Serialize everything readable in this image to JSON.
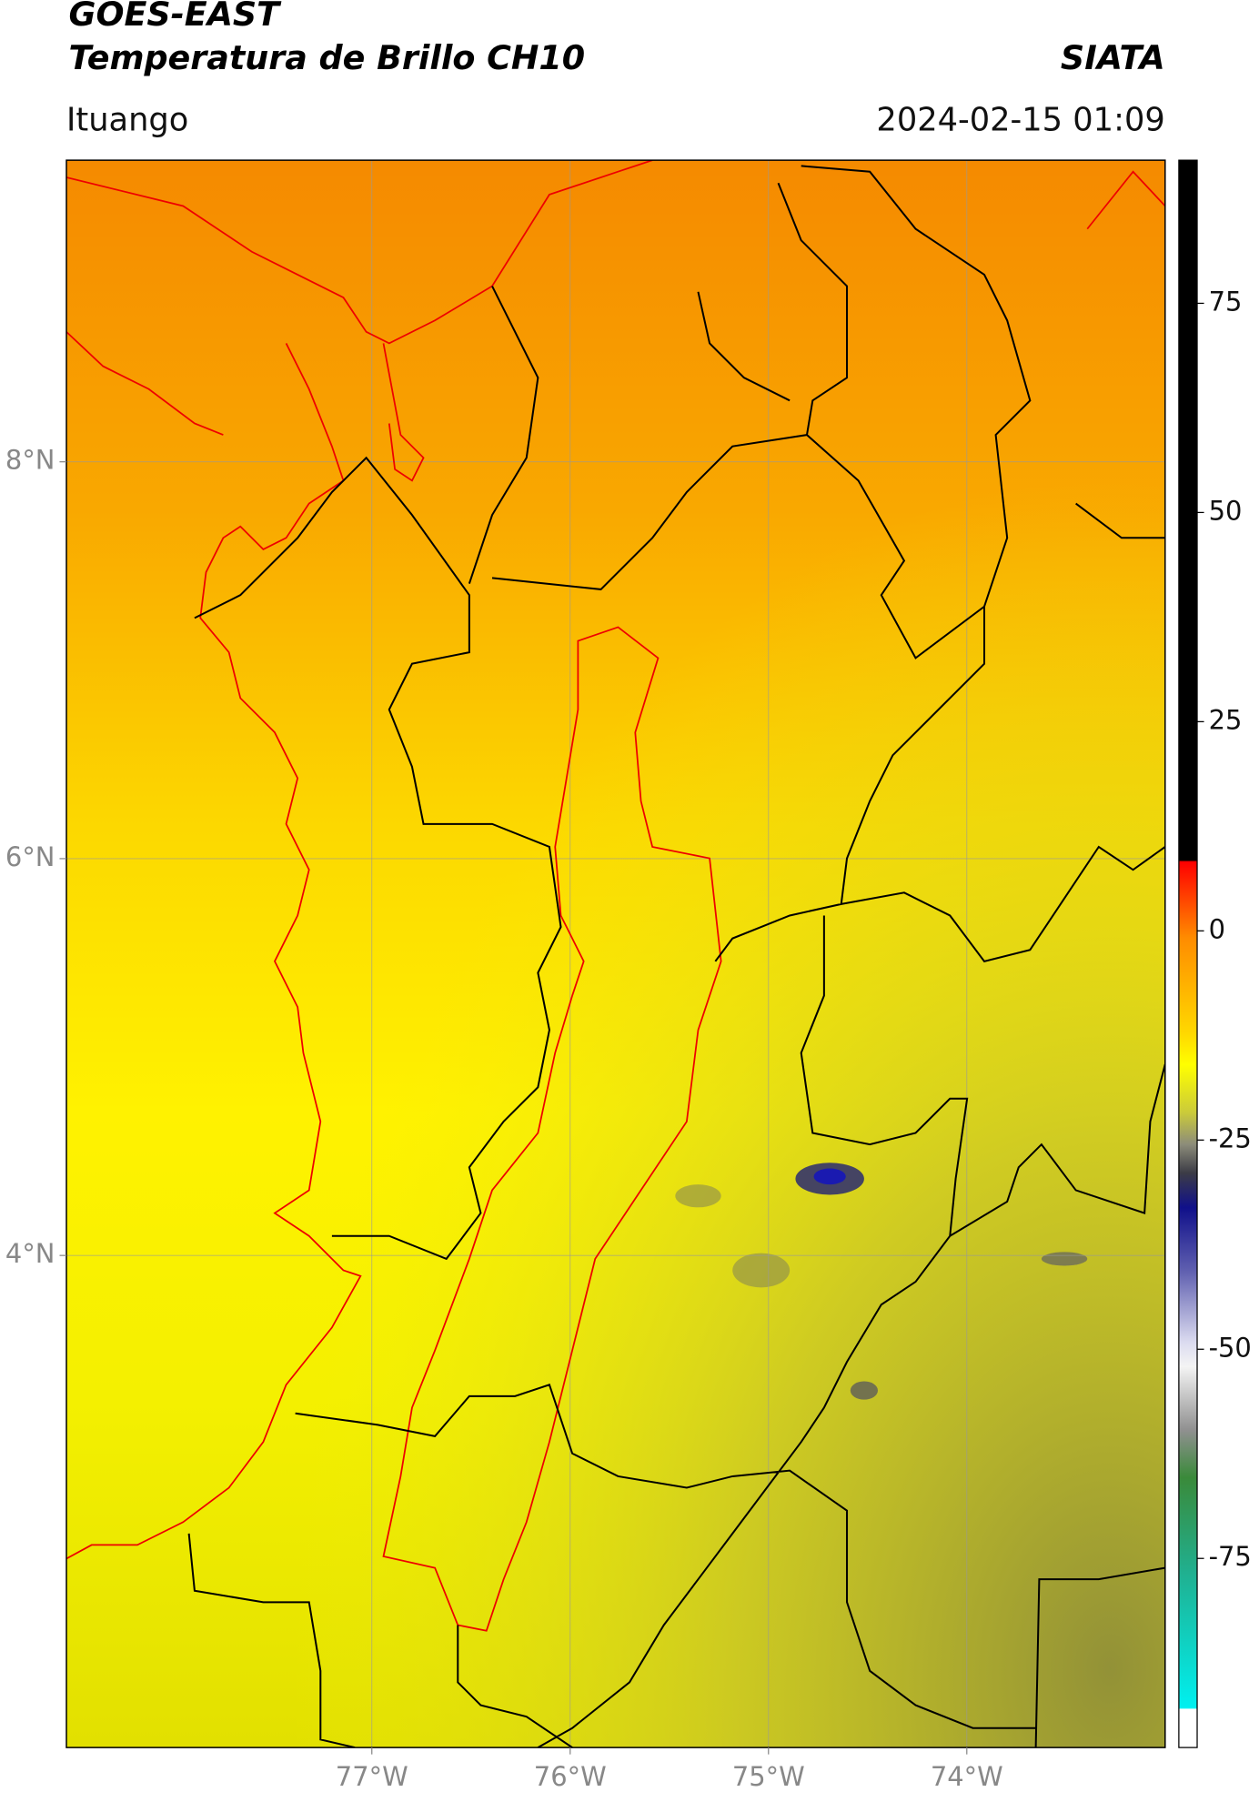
{
  "header": {
    "title": "GOES-EAST",
    "subtitle": "Temperatura de Brillo CH10",
    "source": "SIATA",
    "location": "Ituango",
    "timestamp": "2024-02-15 01:09"
  },
  "map": {
    "xlim": [
      -78.54,
      -73.0
    ],
    "ylim": [
      1.52,
      9.52
    ],
    "xticks": [
      {
        "value": -77,
        "label": "77°W"
      },
      {
        "value": -76,
        "label": "76°W"
      },
      {
        "value": -75,
        "label": "75°W"
      },
      {
        "value": -74,
        "label": "74°W"
      }
    ],
    "yticks": [
      {
        "value": 4,
        "label": "4°N"
      },
      {
        "value": 6,
        "label": "6°N"
      },
      {
        "value": 8,
        "label": "8°N"
      }
    ],
    "grid": true
  },
  "colorbar": {
    "lim": [
      -97.6,
      92.1
    ],
    "ticks": [
      -75,
      -50,
      -25,
      0,
      25,
      50,
      75
    ]
  }
}
